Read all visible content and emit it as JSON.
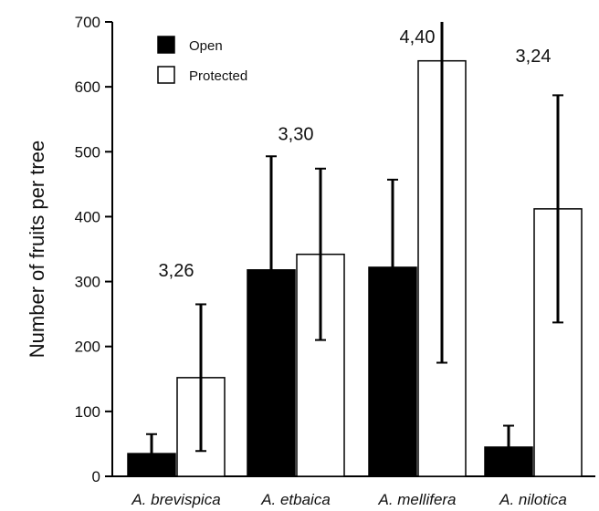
{
  "chart_data": {
    "type": "bar",
    "title": "",
    "xlabel": "",
    "ylabel": "Number of fruits per tree",
    "ylim": [
      0,
      700
    ],
    "yticks": [
      0,
      100,
      200,
      300,
      400,
      500,
      600,
      700
    ],
    "yticks_text": [
      "0",
      "100",
      "200",
      "300",
      "400",
      "500",
      "600",
      "700"
    ],
    "grid": false,
    "legend_position": "top-left",
    "categories": [
      "A. brevispica",
      "A. etbaica",
      "A. mellifera",
      "A. nilotica"
    ],
    "series": [
      {
        "name": "Open",
        "color": "#000000",
        "values": [
          35,
          318,
          322,
          45
        ],
        "errors": [
          30,
          175,
          135,
          33
        ]
      },
      {
        "name": "Protected",
        "color": "#ffffff",
        "values": [
          152,
          342,
          640,
          412
        ],
        "errors": [
          113,
          132,
          465,
          175
        ]
      }
    ],
    "annotations": [
      {
        "text": "3,26",
        "category": 0,
        "y": 308
      },
      {
        "text": "3,30",
        "category": 1,
        "y": 518
      },
      {
        "text": "4,40",
        "category": 2,
        "y": 668
      },
      {
        "text": "3,24",
        "category": 3,
        "y": 638
      }
    ]
  }
}
